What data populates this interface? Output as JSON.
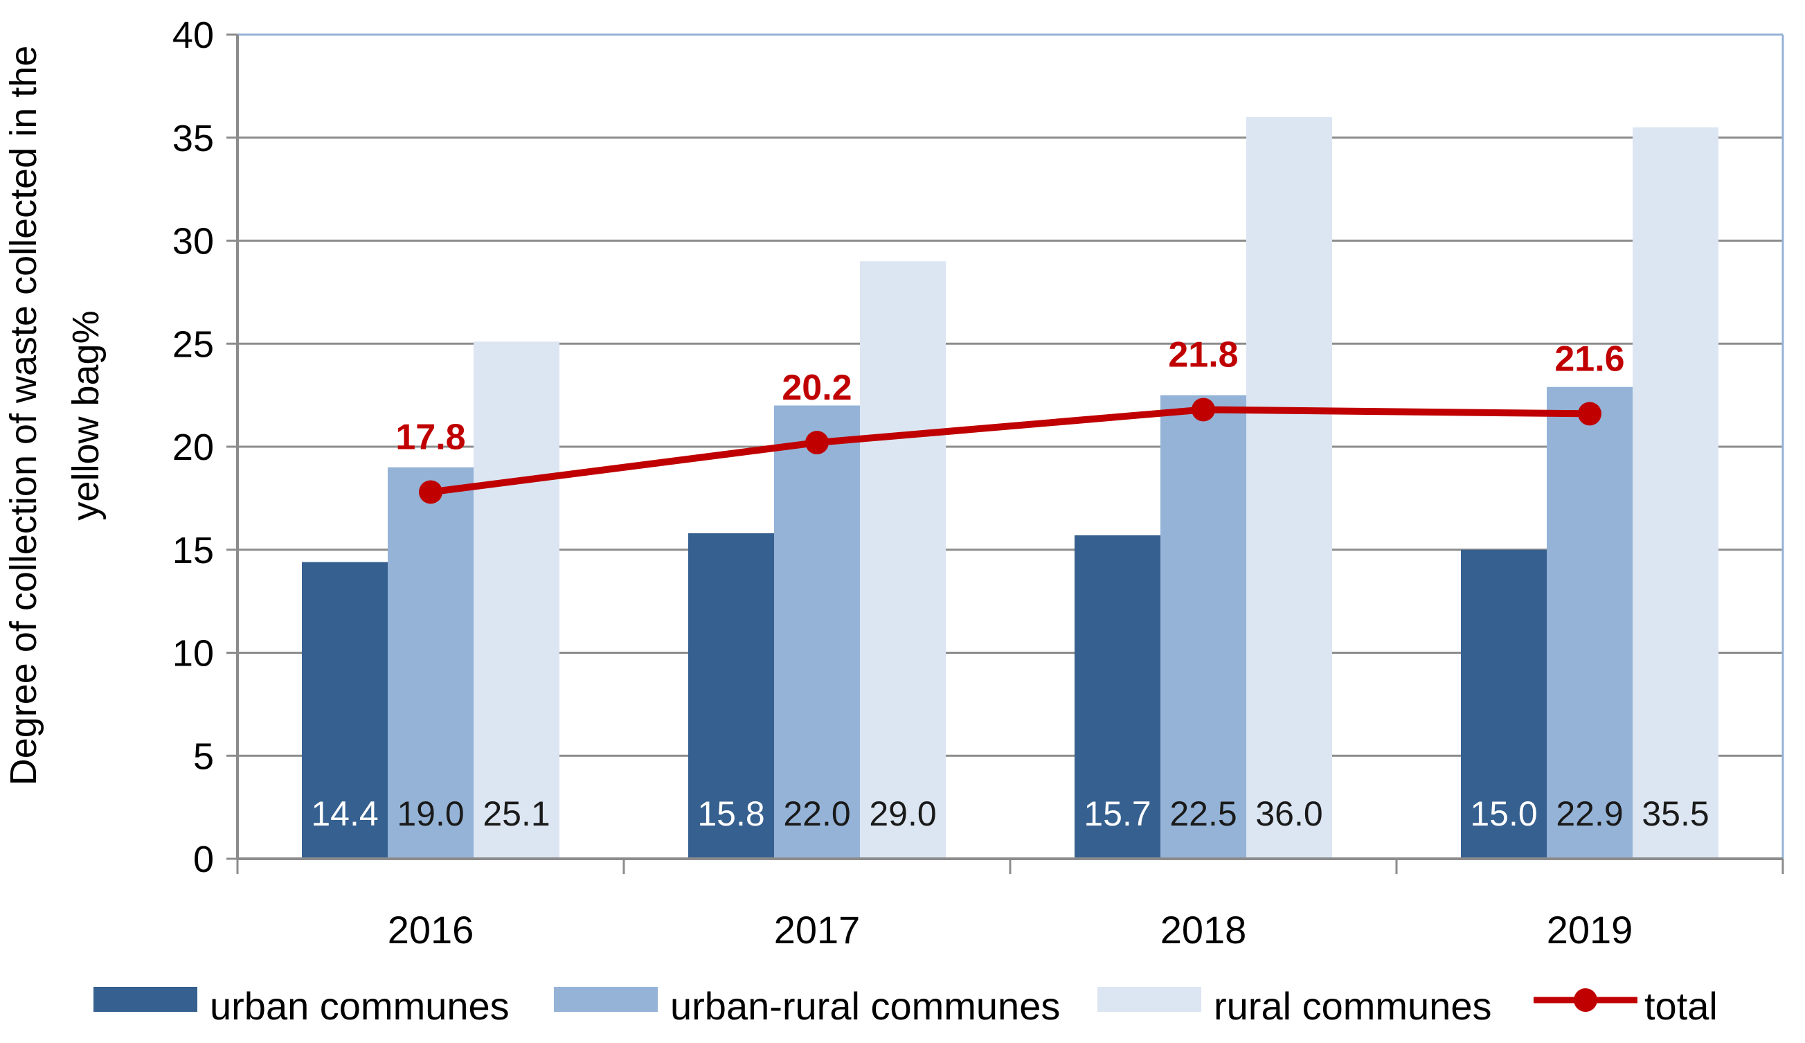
{
  "chart_data": {
    "type": "bar",
    "categories": [
      "2016",
      "2017",
      "2018",
      "2019"
    ],
    "series": [
      {
        "name": "urban communes",
        "values": [
          14.4,
          15.8,
          15.7,
          15.0
        ],
        "labels": [
          "14.4",
          "15.8",
          "15.7",
          "15.0"
        ],
        "color": "#36608F",
        "label_color": "#FFFFFF"
      },
      {
        "name": "urban-rural communes",
        "values": [
          19.0,
          22.0,
          22.5,
          22.9
        ],
        "labels": [
          "19.0",
          "22.0",
          "22.5",
          "22.9"
        ],
        "color": "#95B3D7",
        "label_color": "#1A1A1A"
      },
      {
        "name": "rural communes",
        "values": [
          25.1,
          29.0,
          36.0,
          35.5
        ],
        "labels": [
          "25.1",
          "29.0",
          "36.0",
          "35.5"
        ],
        "color": "#DCE6F2",
        "label_color": "#1A1A1A"
      }
    ],
    "line_series": {
      "name": "total",
      "type": "line",
      "values": [
        17.8,
        20.2,
        21.8,
        21.6
      ],
      "labels": [
        "17.8",
        "20.2",
        "21.8",
        "21.6"
      ],
      "color": "#C00000"
    },
    "title": "",
    "xlabel": "",
    "ylabel_lines": [
      "Degree of collection of waste collected in the",
      "yellow bag%"
    ],
    "ylim": [
      0,
      40
    ],
    "yticks": [
      "0",
      "5",
      "10",
      "15",
      "20",
      "25",
      "30",
      "35",
      "40"
    ],
    "grid": true,
    "legend_position": "bottom",
    "grid_color": "#8C8C8C",
    "border_color": "#95B3D7"
  }
}
